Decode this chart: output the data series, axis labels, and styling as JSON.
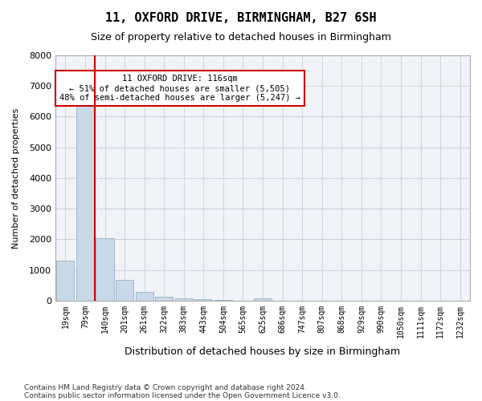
{
  "title1": "11, OXFORD DRIVE, BIRMINGHAM, B27 6SH",
  "title2": "Size of property relative to detached houses in Birmingham",
  "xlabel": "Distribution of detached houses by size in Birmingham",
  "ylabel": "Number of detached properties",
  "footnote1": "Contains HM Land Registry data © Crown copyright and database right 2024.",
  "footnote2": "Contains public sector information licensed under the Open Government Licence v3.0.",
  "annotation_line1": "11 OXFORD DRIVE: 116sqm",
  "annotation_line2": "← 51% of detached houses are smaller (5,505)",
  "annotation_line3": "48% of semi-detached houses are larger (5,247) →",
  "property_size_sqm": 116,
  "bar_color": "#c9d9e8",
  "bar_edge_color": "#a0b8cc",
  "vline_color": "#cc0000",
  "annotation_box_color": "#ffffff",
  "annotation_box_edge": "#cc0000",
  "background_color": "#f0f4f8",
  "grid_color": "#d0d8e0",
  "categories": [
    "19sqm",
    "79sqm",
    "140sqm",
    "201sqm",
    "261sqm",
    "322sqm",
    "383sqm",
    "443sqm",
    "504sqm",
    "565sqm",
    "625sqm",
    "686sqm",
    "747sqm",
    "807sqm",
    "868sqm",
    "929sqm",
    "990sqm",
    "1050sqm",
    "1111sqm",
    "1172sqm",
    "1232sqm"
  ],
  "values": [
    1300,
    6500,
    2050,
    680,
    290,
    130,
    80,
    55,
    30,
    0,
    70,
    0,
    0,
    0,
    0,
    0,
    0,
    0,
    0,
    0,
    0
  ],
  "ylim": [
    0,
    8000
  ],
  "yticks": [
    0,
    1000,
    2000,
    3000,
    4000,
    5000,
    6000,
    7000,
    8000
  ],
  "bin_width": 61
}
